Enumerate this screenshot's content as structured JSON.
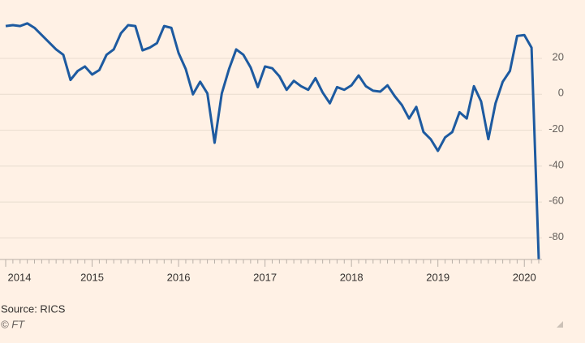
{
  "chart_data": {
    "type": "line",
    "categories": [
      "2014",
      null,
      null,
      null,
      null,
      null,
      null,
      null,
      null,
      null,
      null,
      null,
      "2015",
      null,
      null,
      null,
      null,
      null,
      null,
      null,
      null,
      null,
      null,
      null,
      "2016",
      null,
      null,
      null,
      null,
      null,
      null,
      null,
      null,
      null,
      null,
      null,
      "2017",
      null,
      null,
      null,
      null,
      null,
      null,
      null,
      null,
      null,
      null,
      null,
      "2018",
      null,
      null,
      null,
      null,
      null,
      null,
      null,
      null,
      null,
      null,
      null,
      "2019",
      null,
      null,
      null,
      null,
      null,
      null,
      null,
      null,
      null,
      null,
      null,
      "2020",
      null,
      null
    ],
    "series": [
      {
        "color": "#1d5aa0",
        "values": [
          38,
          38.5,
          38,
          39.5,
          37,
          33,
          29,
          25,
          22,
          8,
          13,
          15.5,
          11,
          13.5,
          22,
          25,
          34,
          38.5,
          38,
          24.5,
          26,
          28.5,
          38,
          37,
          23,
          14,
          0,
          7,
          0.5,
          -27,
          0.5,
          14,
          25,
          22,
          15,
          4,
          15.5,
          14.5,
          10,
          2.5,
          7.5,
          4.5,
          2.5,
          9,
          1,
          -5,
          4,
          2.5,
          5,
          10.5,
          4.5,
          2,
          1.5,
          5,
          -1,
          -6,
          -13.5,
          -7,
          -21,
          -25,
          -31.5,
          -24,
          -21,
          -10,
          -13.5,
          4.5,
          -4,
          -25,
          -5,
          7,
          13,
          32.5,
          33,
          26,
          -92
        ]
      }
    ],
    "ylim": [
      -92,
      48
    ],
    "yticks": [
      -80,
      -60,
      -40,
      -20,
      0,
      20
    ],
    "grid": true,
    "source": "Source: RICS",
    "credit": "© FT"
  }
}
